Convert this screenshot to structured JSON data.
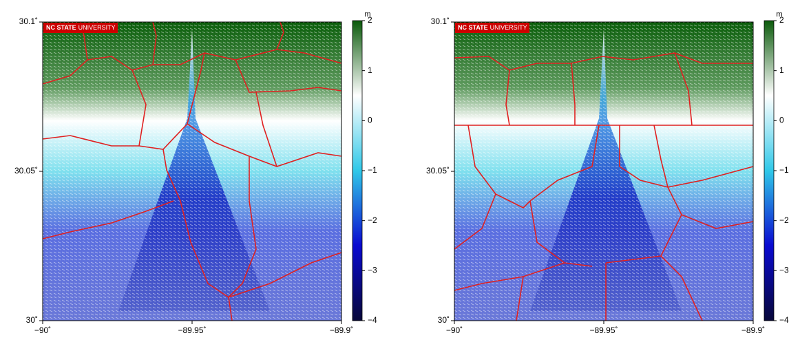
{
  "chart_data": [
    {
      "type": "map",
      "logo_bold": "NC STATE",
      "logo_text": "UNIVERSITY",
      "xlim": [
        -90,
        -89.9
      ],
      "xticks": [
        {
          "value": -90,
          "label": "−90˚"
        },
        {
          "value": -89.95,
          "label": "−89.95˚"
        },
        {
          "value": -89.9,
          "label": "−89.9˚"
        }
      ],
      "ylim": [
        30,
        30.1
      ],
      "yticks": [
        {
          "value": 30,
          "label": "30˚"
        },
        {
          "value": 30.05,
          "label": "30.05˚"
        },
        {
          "value": 30.1,
          "label": "30.1˚"
        }
      ],
      "colorbar": {
        "label": "m",
        "lim": [
          -4,
          2
        ],
        "ticks": [
          2,
          1,
          0,
          {
            "value": -1,
            "label": "−1"
          },
          {
            "value": -2,
            "label": "−2"
          },
          {
            "value": -3,
            "label": "−3"
          },
          {
            "value": -4,
            "label": "−4"
          }
        ],
        "colors": [
          "#08083a",
          "#0a0ad0",
          "#30c8e8",
          "#ffffff",
          "#0b5a0b"
        ]
      }
    },
    {
      "type": "map",
      "logo_bold": "NC STATE",
      "logo_text": "UNIVERSITY",
      "xlim": [
        -90,
        -89.9
      ],
      "xticks": [
        {
          "value": -90,
          "label": "−90˚"
        },
        {
          "value": -89.95,
          "label": "−89.95˚"
        },
        {
          "value": -89.9,
          "label": "−89.9˚"
        }
      ],
      "ylim": [
        30,
        30.1
      ],
      "yticks": [
        {
          "value": 30,
          "label": "30˚"
        },
        {
          "value": 30.05,
          "label": "30.05˚"
        },
        {
          "value": 30.1,
          "label": "30.1˚"
        }
      ],
      "colorbar": {
        "label": "m",
        "lim": [
          -4,
          2
        ],
        "ticks": [
          2,
          1,
          0,
          {
            "value": -1,
            "label": "−1"
          },
          {
            "value": -2,
            "label": "−2"
          },
          {
            "value": -3,
            "label": "−3"
          },
          {
            "value": -4,
            "label": "−4"
          }
        ],
        "colors": [
          "#08083a",
          "#0a0ad0",
          "#30c8e8",
          "#ffffff",
          "#0b5a0b"
        ]
      }
    }
  ]
}
